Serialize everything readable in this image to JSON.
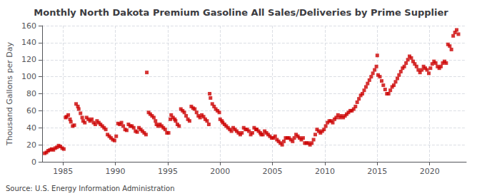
{
  "chart_data": {
    "type": "scatter",
    "title": "Monthly North Dakota Premium Gasoline All Sales/Deliveries by Prime Supplier",
    "ylabel": "Thousand Gallons per Day",
    "annotation": "Source: U.S. Energy Information Administration",
    "color": "#cc0000",
    "marker": "square",
    "grid": true,
    "xlim": [
      1983.0,
      2023.5
    ],
    "ylim": [
      0,
      160
    ],
    "xticks": [
      1985,
      1990,
      1995,
      2000,
      2005,
      2010,
      2015,
      2020
    ],
    "yticks": [
      0,
      20,
      40,
      60,
      80,
      100,
      120,
      140,
      160
    ],
    "x": [
      1983.25,
      1983.42,
      1983.58,
      1983.75,
      1983.92,
      1984.08,
      1984.25,
      1984.42,
      1984.58,
      1984.75,
      1984.92,
      1985.08,
      1985.25,
      1985.33,
      1985.5,
      1985.67,
      1985.75,
      1985.92,
      1986.08,
      1986.25,
      1986.42,
      1986.5,
      1986.67,
      1986.83,
      1986.92,
      1987.08,
      1987.25,
      1987.42,
      1987.58,
      1987.75,
      1987.92,
      1988.08,
      1988.25,
      1988.42,
      1988.58,
      1988.75,
      1988.92,
      1989.08,
      1989.25,
      1989.42,
      1989.58,
      1989.75,
      1989.92,
      1990.08,
      1990.25,
      1990.42,
      1990.58,
      1990.75,
      1990.92,
      1991.08,
      1991.25,
      1991.42,
      1991.58,
      1991.75,
      1991.92,
      1992.08,
      1992.25,
      1992.42,
      1992.58,
      1992.75,
      1992.92,
      1993.0,
      1993.17,
      1993.33,
      1993.5,
      1993.67,
      1993.83,
      1993.92,
      1994.08,
      1994.25,
      1994.42,
      1994.58,
      1994.75,
      1994.92,
      1995.08,
      1995.25,
      1995.33,
      1995.5,
      1995.67,
      1995.75,
      1995.92,
      1996.08,
      1996.25,
      1996.42,
      1996.58,
      1996.75,
      1996.92,
      1997.08,
      1997.25,
      1997.42,
      1997.58,
      1997.75,
      1997.92,
      1998.08,
      1998.25,
      1998.42,
      1998.58,
      1998.75,
      1998.92,
      1999.0,
      1999.08,
      1999.25,
      1999.42,
      1999.58,
      1999.75,
      1999.92,
      2000.0,
      2000.17,
      2000.25,
      2000.42,
      2000.58,
      2000.75,
      2000.92,
      2001.08,
      2001.25,
      2001.42,
      2001.58,
      2001.75,
      2001.92,
      2002.08,
      2002.25,
      2002.42,
      2002.58,
      2002.75,
      2002.92,
      2003.08,
      2003.25,
      2003.42,
      2003.5,
      2003.67,
      2003.83,
      2003.92,
      2004.08,
      2004.25,
      2004.42,
      2004.58,
      2004.75,
      2004.92,
      2005.08,
      2005.25,
      2005.42,
      2005.58,
      2005.75,
      2005.92,
      2006.08,
      2006.25,
      2006.42,
      2006.58,
      2006.75,
      2006.92,
      2007.08,
      2007.25,
      2007.42,
      2007.58,
      2007.75,
      2007.92,
      2008.08,
      2008.25,
      2008.42,
      2008.58,
      2008.75,
      2008.92,
      2009.08,
      2009.25,
      2009.42,
      2009.58,
      2009.75,
      2009.92,
      2010.08,
      2010.25,
      2010.42,
      2010.58,
      2010.75,
      2010.92,
      2011.08,
      2011.25,
      2011.42,
      2011.58,
      2011.75,
      2011.92,
      2012.08,
      2012.25,
      2012.42,
      2012.58,
      2012.75,
      2012.92,
      2013.08,
      2013.25,
      2013.42,
      2013.58,
      2013.75,
      2013.92,
      2014.08,
      2014.25,
      2014.42,
      2014.58,
      2014.75,
      2014.92,
      2015.0,
      2015.08,
      2015.25,
      2015.42,
      2015.58,
      2015.75,
      2015.92,
      2016.08,
      2016.25,
      2016.42,
      2016.58,
      2016.75,
      2016.92,
      2017.08,
      2017.25,
      2017.42,
      2017.58,
      2017.75,
      2017.92,
      2018.08,
      2018.25,
      2018.42,
      2018.58,
      2018.75,
      2018.92,
      2019.08,
      2019.25,
      2019.42,
      2019.58,
      2019.75,
      2019.92,
      2020.08,
      2020.25,
      2020.42,
      2020.58,
      2020.75,
      2020.92,
      2021.08,
      2021.25,
      2021.42,
      2021.58,
      2021.75,
      2021.92,
      2022.08,
      2022.25,
      2022.42,
      2022.58,
      2022.75
    ],
    "values": [
      10,
      11,
      13,
      14,
      15,
      14,
      16,
      17,
      19,
      18,
      16,
      15,
      52,
      53,
      55,
      50,
      47,
      42,
      43,
      68,
      65,
      62,
      57,
      52,
      48,
      46,
      52,
      50,
      48,
      50,
      46,
      44,
      48,
      46,
      44,
      42,
      40,
      38,
      32,
      30,
      28,
      26,
      25,
      30,
      45,
      44,
      46,
      42,
      38,
      37,
      44,
      42,
      42,
      40,
      36,
      35,
      40,
      38,
      36,
      34,
      32,
      105,
      58,
      56,
      54,
      52,
      48,
      44,
      42,
      44,
      42,
      40,
      38,
      34,
      34,
      50,
      55,
      52,
      50,
      48,
      44,
      42,
      62,
      60,
      58,
      54,
      50,
      48,
      65,
      63,
      62,
      58,
      54,
      52,
      55,
      53,
      50,
      48,
      44,
      80,
      75,
      68,
      65,
      62,
      60,
      58,
      50,
      48,
      46,
      44,
      42,
      40,
      38,
      36,
      40,
      38,
      36,
      34,
      32,
      34,
      40,
      38,
      38,
      36,
      32,
      34,
      40,
      38,
      38,
      36,
      34,
      32,
      32,
      36,
      34,
      32,
      30,
      28,
      28,
      30,
      26,
      24,
      22,
      20,
      24,
      28,
      28,
      28,
      26,
      24,
      28,
      32,
      30,
      28,
      26,
      28,
      22,
      22,
      22,
      20,
      22,
      26,
      32,
      38,
      36,
      34,
      36,
      38,
      42,
      46,
      48,
      48,
      46,
      50,
      52,
      55,
      52,
      54,
      52,
      54,
      56,
      58,
      60,
      60,
      62,
      65,
      70,
      74,
      78,
      80,
      84,
      88,
      92,
      96,
      100,
      104,
      108,
      112,
      125,
      102,
      100,
      95,
      90,
      85,
      80,
      80,
      84,
      88,
      90,
      94,
      98,
      102,
      106,
      110,
      112,
      116,
      120,
      124,
      122,
      118,
      115,
      112,
      108,
      105,
      108,
      112,
      110,
      108,
      104,
      110,
      115,
      118,
      116,
      112,
      110,
      112,
      116,
      118,
      116,
      138,
      136,
      132,
      148,
      152,
      155,
      150
    ]
  }
}
